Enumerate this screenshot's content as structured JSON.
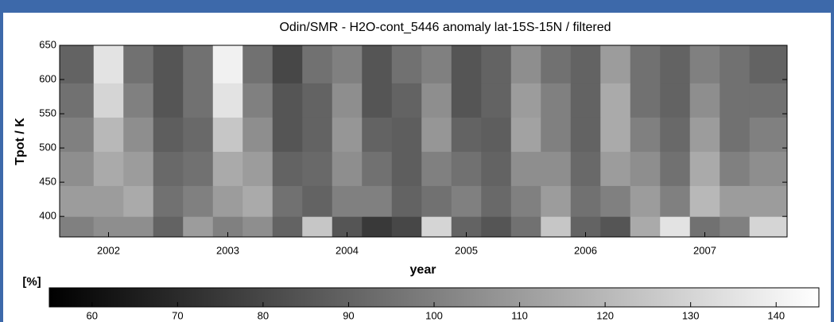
{
  "chart_data": {
    "type": "heatmap",
    "title": "Odin/SMR - H2O-cont_5446 anomaly   lat-15S-15N / filtered",
    "xlabel": "year",
    "ylabel": "Tpot / K",
    "colorbar_label": "[%]",
    "x": [
      2001.75,
      2002.0,
      2002.25,
      2002.5,
      2002.75,
      2003.0,
      2003.25,
      2003.5,
      2003.75,
      2004.0,
      2004.25,
      2004.5,
      2004.75,
      2005.0,
      2005.25,
      2005.5,
      2005.75,
      2006.0,
      2006.25,
      2006.5,
      2006.75,
      2007.0,
      2007.25,
      2007.5
    ],
    "y": [
      380,
      420,
      470,
      520,
      570,
      620
    ],
    "z": [
      [
        100,
        105,
        105,
        90,
        110,
        100,
        105,
        90,
        125,
        85,
        75,
        80,
        130,
        90,
        85,
        95,
        125,
        90,
        85,
        115,
        135,
        95,
        100,
        130
      ],
      [
        110,
        110,
        115,
        95,
        100,
        110,
        115,
        95,
        90,
        100,
        100,
        90,
        95,
        100,
        92,
        100,
        110,
        95,
        100,
        110,
        100,
        120,
        110,
        110
      ],
      [
        105,
        115,
        110,
        92,
        95,
        115,
        110,
        90,
        92,
        105,
        95,
        88,
        100,
        95,
        90,
        105,
        105,
        92,
        110,
        105,
        95,
        115,
        100,
        105
      ],
      [
        100,
        120,
        105,
        88,
        92,
        125,
        105,
        85,
        90,
        108,
        90,
        88,
        108,
        90,
        88,
        112,
        100,
        90,
        115,
        100,
        92,
        110,
        95,
        100
      ],
      [
        95,
        130,
        100,
        85,
        95,
        135,
        100,
        85,
        90,
        105,
        85,
        90,
        105,
        85,
        90,
        110,
        100,
        90,
        115,
        95,
        90,
        105,
        95,
        95
      ],
      [
        90,
        135,
        95,
        85,
        95,
        140,
        95,
        80,
        95,
        100,
        85,
        95,
        100,
        85,
        90,
        105,
        95,
        90,
        110,
        95,
        90,
        100,
        95,
        90
      ]
    ],
    "xlim": [
      2001.59,
      2007.69
    ],
    "xticks": [
      2002,
      2003,
      2004,
      2005,
      2006,
      2007
    ],
    "ylim": [
      370,
      650
    ],
    "yticks": [
      400,
      450,
      500,
      550,
      600,
      650
    ],
    "clim": [
      55,
      145
    ],
    "cticks": [
      60,
      70,
      80,
      90,
      100,
      110,
      120,
      130,
      140
    ],
    "colormap": "gray"
  }
}
